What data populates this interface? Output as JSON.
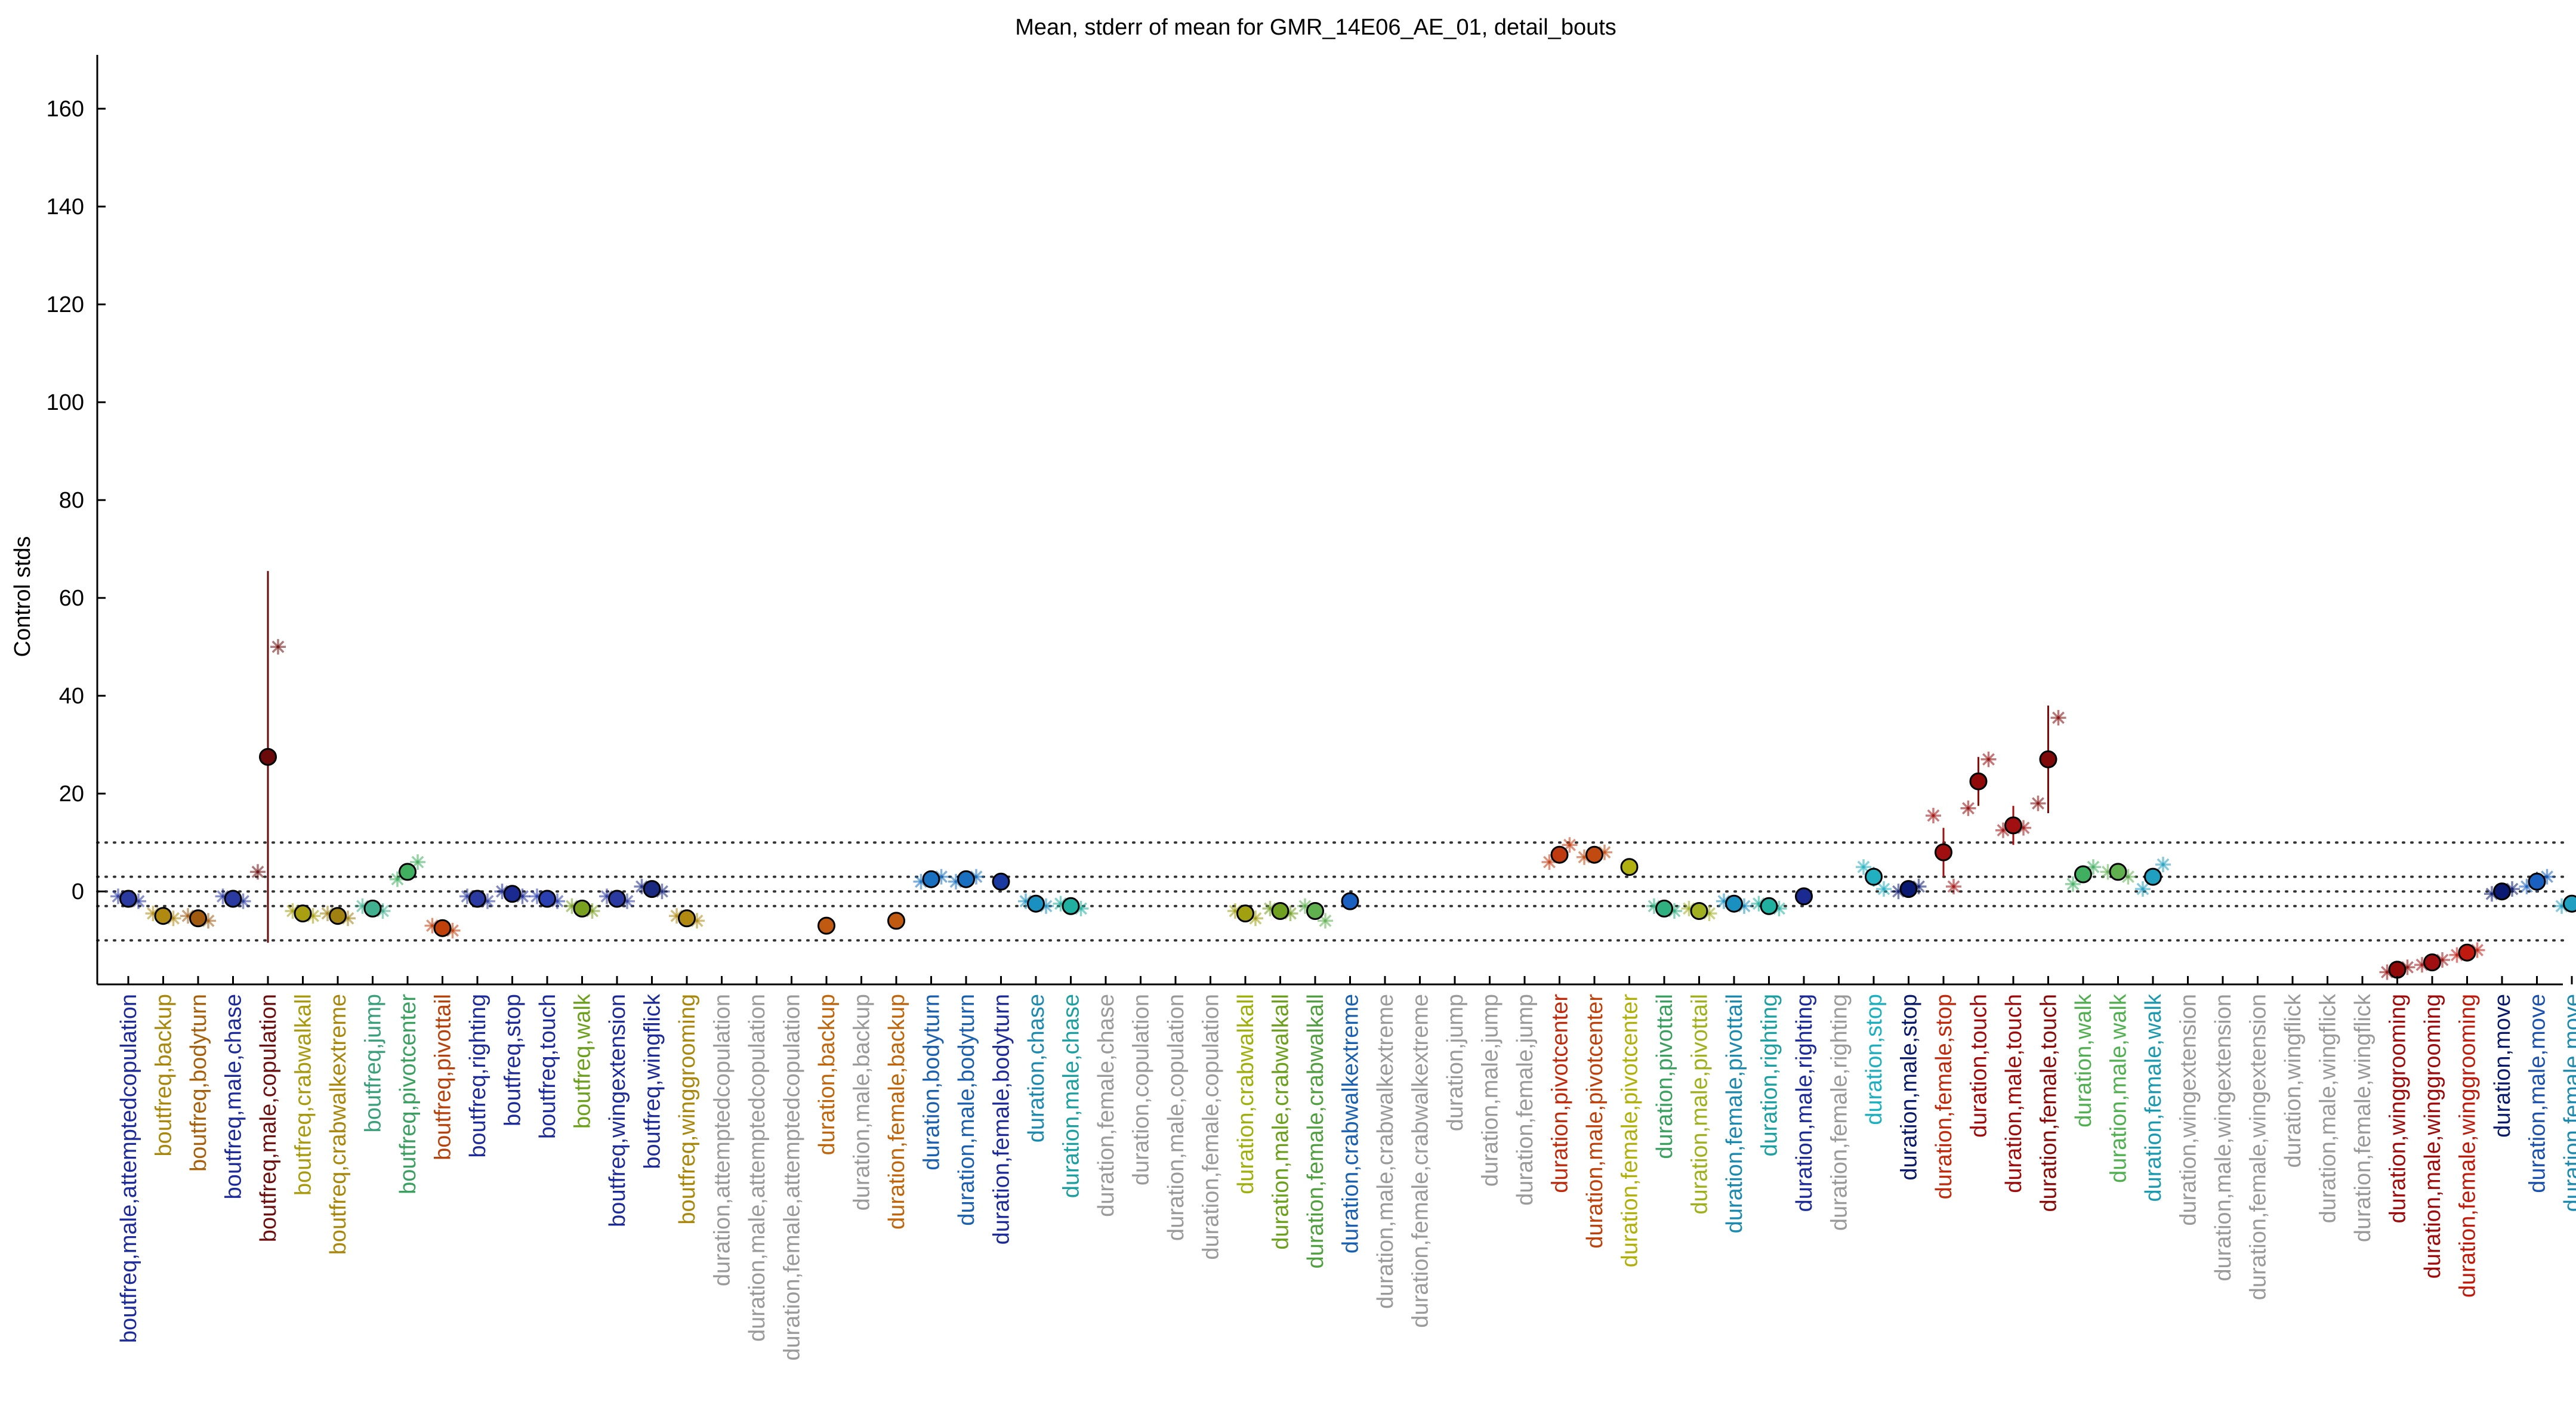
{
  "chart_data": {
    "type": "scatter",
    "title": "Mean, stderr of mean for GMR_14E06_AE_01, detail_bouts",
    "ylabel": "Control stds",
    "xlabel": "",
    "ylim": [
      -19,
      171
    ],
    "yticks": [
      0,
      20,
      40,
      60,
      80,
      100,
      120,
      140,
      160
    ],
    "reference_lines": [
      10,
      3,
      0,
      -3,
      -10
    ],
    "grid": false,
    "categories": [
      "boutfreq,male,attemptedcopulation",
      "boutfreq,backup",
      "boutfreq,bodyturn",
      "boutfreq,male,chase",
      "boutfreq,male,copulation",
      "boutfreq,crabwalkall",
      "boutfreq,crabwalkextreme",
      "boutfreq,jump",
      "boutfreq,pivotcenter",
      "boutfreq,pivottail",
      "boutfreq,righting",
      "boutfreq,stop",
      "boutfreq,touch",
      "boutfreq,walk",
      "boutfreq,wingextension",
      "boutfreq,wingflick",
      "boutfreq,winggrooming",
      "duration,attemptedcopulation",
      "duration,male,attemptedcopulation",
      "duration,female,attemptedcopulation",
      "duration,backup",
      "duration,male,backup",
      "duration,female,backup",
      "duration,bodyturn",
      "duration,male,bodyturn",
      "duration,female,bodyturn",
      "duration,chase",
      "duration,male,chase",
      "duration,female,chase",
      "duration,copulation",
      "duration,male,copulation",
      "duration,female,copulation",
      "duration,crabwalkall",
      "duration,male,crabwalkall",
      "duration,female,crabwalkall",
      "duration,crabwalkextreme",
      "duration,male,crabwalkextreme",
      "duration,female,crabwalkextreme",
      "duration,jump",
      "duration,male,jump",
      "duration,female,jump",
      "duration,pivotcenter",
      "duration,male,pivotcenter",
      "duration,female,pivotcenter",
      "duration,pivottail",
      "duration,male,pivottail",
      "duration,female,pivottail",
      "duration,righting",
      "duration,male,righting",
      "duration,female,righting",
      "duration,stop",
      "duration,male,stop",
      "duration,female,stop",
      "duration,touch",
      "duration,male,touch",
      "duration,female,touch",
      "duration,walk",
      "duration,male,walk",
      "duration,female,walk",
      "duration,wingextension",
      "duration,male,wingextension",
      "duration,female,wingextension",
      "duration,wingflick",
      "duration,male,wingflick",
      "duration,female,wingflick",
      "duration,winggrooming",
      "duration,male,winggrooming",
      "duration,female,winggrooming",
      "duration,move",
      "duration,male,move",
      "duration,female,move"
    ],
    "label_colors": [
      "#1c2a9a",
      "#a8870a",
      "#a8600a",
      "#1c2a9a",
      "#6e0f0f",
      "#a89a0a",
      "#a8870a",
      "#3aa07a",
      "#3aa060",
      "#b8410a",
      "#1c2a9a",
      "#1c2a9a",
      "#1c2a9a",
      "#6aa01a",
      "#1c2a9a",
      "#1c2a9a",
      "#a8870a",
      "#9a9a9a",
      "#9a9a9a",
      "#9a9a9a",
      "#c0650a",
      "#9a9a9a",
      "#c0650a",
      "#1a60b0",
      "#1a60b0",
      "#1c2a9a",
      "#1a8ab0",
      "#1aa0a0",
      "#9a9a9a",
      "#9a9a9a",
      "#9a9a9a",
      "#9a9a9a",
      "#a0b00a",
      "#6aa01a",
      "#50a040",
      "#1a60b0",
      "#9a9a9a",
      "#9a9a9a",
      "#9a9a9a",
      "#9a9a9a",
      "#9a9a9a",
      "#c02a0a",
      "#c0400a",
      "#b0b00a",
      "#3aa060",
      "#a0b01a",
      "#1a8ab0",
      "#1aa0a0",
      "#1c2a9a",
      "#9a9a9a",
      "#1ab0c0",
      "#0a1a6a",
      "#c02a0a",
      "#a00a0a",
      "#a00a0a",
      "#8a0a0a",
      "#50b050",
      "#50b050",
      "#1a9ab0",
      "#9a9a9a",
      "#9a9a9a",
      "#9a9a9a",
      "#9a9a9a",
      "#9a9a9a",
      "#9a9a9a",
      "#a00a0a",
      "#a00a0a",
      "#c01a0a",
      "#0a1a6a",
      "#1a50b0",
      "#1a8ab0"
    ],
    "series": [
      {
        "values": [
          -1.5,
          -5,
          -5.5,
          -1.5,
          27.5,
          -4.5,
          -5,
          -3.5,
          4,
          -7.5,
          -1.5,
          -0.5,
          -1.5,
          -3.5,
          -1.5,
          0.5,
          -5.5,
          null,
          null,
          null,
          -7,
          null,
          -6,
          2.5,
          2.5,
          2,
          -2.5,
          -3,
          null,
          null,
          null,
          null,
          -4.5,
          -4,
          -4,
          -2,
          null,
          null,
          null,
          null,
          null,
          7.5,
          7.5,
          5,
          -3.5,
          -4,
          -2.5,
          -3,
          -1,
          null,
          3,
          0.5,
          8,
          22.5,
          13.5,
          27,
          3.5,
          4,
          3,
          null,
          null,
          null,
          null,
          null,
          null,
          -16,
          -14.5,
          -12.5,
          0,
          2,
          -2.5
        ],
        "stderr": [
          1.5,
          1,
          1.5,
          1,
          38,
          1.5,
          1.5,
          1,
          1.5,
          1.5,
          1.5,
          1.5,
          1.5,
          1,
          1.5,
          1.5,
          1,
          null,
          null,
          null,
          0.5,
          null,
          0.5,
          1,
          1,
          1,
          1,
          1,
          null,
          null,
          null,
          null,
          1.5,
          1,
          1.5,
          0.8,
          null,
          null,
          null,
          null,
          null,
          1.5,
          1.2,
          1,
          1,
          1,
          1,
          1,
          1,
          null,
          2,
          1,
          5,
          5,
          4,
          11,
          1.5,
          1,
          1.5,
          null,
          null,
          null,
          null,
          null,
          null,
          1,
          1,
          1,
          1,
          2,
          1
        ],
        "marker_colors": [
          "#2a3aa0",
          "#b08a10",
          "#a05a10",
          "#2a3aa0",
          "#6a0a0a",
          "#a8a010",
          "#a08010",
          "#40b090",
          "#40b060",
          "#c0400a",
          "#2a3aa0",
          "#1a2a90",
          "#2a40b0",
          "#7aa020",
          "#2a3aa0",
          "#1a2a80",
          "#b08a10",
          null,
          null,
          null,
          "#c05a10",
          null,
          "#c05a10",
          "#1a70c0",
          "#1a70c0",
          "#1a3aa0",
          "#1a90c0",
          "#20b0a0",
          null,
          null,
          null,
          null,
          "#a0a010",
          "#70a020",
          "#60b050",
          "#1a60c0",
          null,
          null,
          null,
          null,
          null,
          "#c03a10",
          "#c04a10",
          "#b0b010",
          "#30b080",
          "#a0b020",
          "#1a90c0",
          "#20b0a0",
          "#1a2a90",
          null,
          "#20b0c0",
          "#0a1a70",
          "#a01010",
          "#900a0a",
          "#a01010",
          "#800a0a",
          "#40b060",
          "#60b050",
          "#20a0c0",
          null,
          null,
          null,
          null,
          null,
          null,
          "#900a0a",
          "#a01010",
          "#c01a10",
          "#0a1a70",
          "#1a60c0",
          "#20a0c0"
        ],
        "sub_points": [
          [
            -1,
            -2
          ],
          [
            -4.5,
            -5.5
          ],
          [
            -5,
            -6
          ],
          [
            -1,
            -2
          ],
          [
            4,
            50
          ],
          [
            -4,
            -5
          ],
          [
            -4.5,
            -5.5
          ],
          [
            -3,
            -4
          ],
          [
            2.5,
            6
          ],
          [
            -7,
            -8
          ],
          [
            -1,
            -2
          ],
          [
            0,
            -1
          ],
          [
            -1,
            -2
          ],
          [
            -3,
            -4
          ],
          [
            -1,
            -2
          ],
          [
            1,
            0
          ],
          [
            -5,
            -6
          ],
          null,
          null,
          null,
          null,
          null,
          null,
          [
            2,
            3
          ],
          [
            2,
            3
          ],
          null,
          [
            -2,
            -3
          ],
          [
            -2.5,
            -3.5
          ],
          null,
          null,
          null,
          null,
          [
            -4,
            -5.5
          ],
          [
            -3.5,
            -4.5
          ],
          [
            -3,
            -6
          ],
          null,
          null,
          null,
          null,
          null,
          null,
          [
            6,
            9.5
          ],
          [
            7,
            8
          ],
          null,
          [
            -3,
            -4
          ],
          [
            -3.5,
            -4.5
          ],
          [
            -2,
            -3
          ],
          [
            -2.5,
            -3.5
          ],
          null,
          null,
          [
            5,
            0.5
          ],
          [
            0,
            1
          ],
          [
            15.5,
            1
          ],
          [
            17,
            27
          ],
          [
            12.5,
            13
          ],
          [
            18,
            35.5
          ],
          [
            1.5,
            5
          ],
          [
            4,
            3
          ],
          [
            0.5,
            5.5
          ],
          null,
          null,
          null,
          null,
          null,
          null,
          [
            -16.5,
            -15.5
          ],
          [
            -15,
            -14
          ],
          [
            -13,
            -12
          ],
          [
            -0.5,
            0.5
          ],
          [
            1,
            3
          ],
          [
            -3,
            -1.5
          ]
        ]
      }
    ]
  }
}
